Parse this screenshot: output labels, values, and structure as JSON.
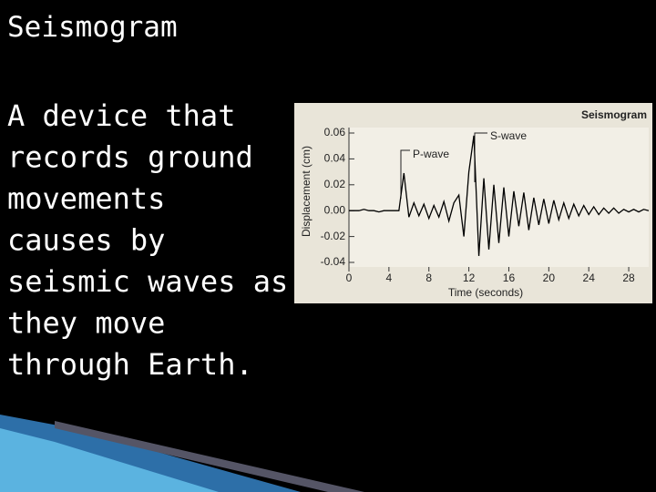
{
  "slide": {
    "title": "Seismogram",
    "body": [
      "A device that",
      "records ground",
      "movements",
      "causes by",
      "seismic waves as",
      "they move",
      "through Earth."
    ]
  },
  "chart_data": {
    "type": "line",
    "title": "Seismogram",
    "x_label": "Time (seconds)",
    "y_label": "Displacement (cm)",
    "annotations": [
      "P-wave",
      "S-wave"
    ],
    "x": [
      0,
      0.5,
      1,
      1.5,
      2,
      2.5,
      3,
      3.5,
      4,
      4.5,
      5,
      5.5,
      6,
      6.5,
      7,
      7.5,
      8,
      8.5,
      9,
      9.5,
      10,
      10.5,
      11,
      11.5,
      12,
      12.5,
      13,
      13.5,
      14,
      14.5,
      15,
      15.5,
      16,
      16.5,
      17,
      17.5,
      18,
      18.5,
      19,
      19.5,
      20,
      20.5,
      21,
      21.5,
      22,
      22.5,
      23,
      23.5,
      24,
      24.5,
      25,
      25.5,
      26,
      26.5,
      27,
      27.5,
      28,
      28.5,
      29,
      29.5,
      30
    ],
    "values": [
      0,
      0,
      0,
      0.001,
      0,
      0,
      -0.001,
      0,
      0,
      0,
      0,
      0.029,
      -0.005,
      0.006,
      -0.004,
      0.005,
      -0.006,
      0.004,
      -0.005,
      0.007,
      -0.008,
      0.006,
      0.012,
      -0.02,
      0.03,
      0.058,
      -0.035,
      0.025,
      -0.03,
      0.02,
      -0.025,
      0.018,
      -0.02,
      0.015,
      -0.012,
      0.014,
      -0.015,
      0.01,
      -0.011,
      0.009,
      -0.01,
      0.008,
      -0.007,
      0.006,
      -0.006,
      0.005,
      -0.004,
      0.004,
      -0.003,
      0.003,
      -0.003,
      0.002,
      -0.002,
      0.002,
      -0.002,
      0.001,
      -0.001,
      0.001,
      -0.001,
      0.001,
      0
    ],
    "color": "#000000",
    "xlim": [
      0,
      30
    ],
    "ylim": [
      -0.04,
      0.06
    ],
    "xticks": [
      0,
      4,
      8,
      12,
      16,
      20,
      24,
      28
    ],
    "yticks": [
      0.06,
      0.04,
      0.02,
      {
        "value": 0,
        "label": "0.00"
      },
      -0.02,
      -0.04
    ]
  }
}
